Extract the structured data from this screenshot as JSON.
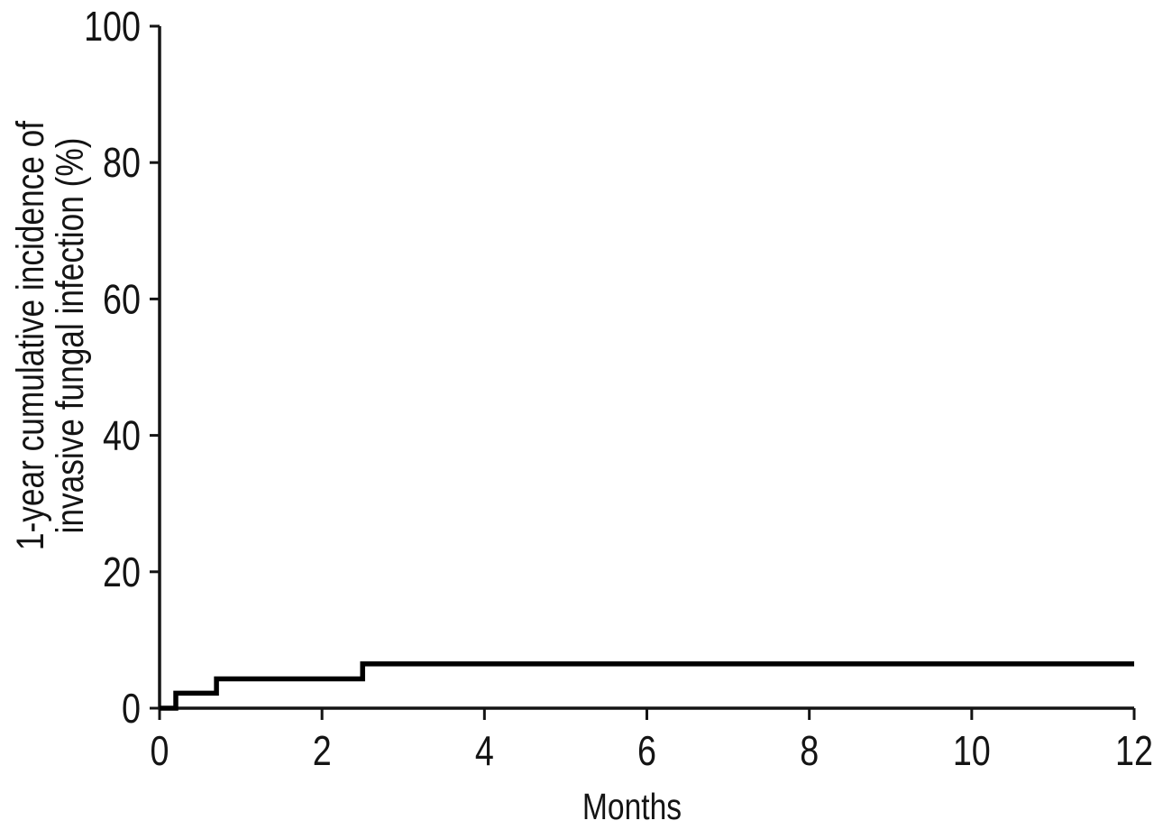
{
  "figure": {
    "background_color": "#ffffff",
    "axis_color": "#141414",
    "text_color": "#141414"
  },
  "chart_data": {
    "type": "line",
    "subtype": "step-post",
    "title": "",
    "xlabel": "Months",
    "ylabel_line1": "1-year cumulative incidence of",
    "ylabel_line2": "invasive fungal infection (%)",
    "xlim": [
      0,
      12
    ],
    "ylim": [
      0,
      100
    ],
    "xticks": [
      0,
      2,
      4,
      6,
      8,
      10,
      12
    ],
    "yticks": [
      0,
      20,
      40,
      60,
      80,
      100
    ],
    "grid": false,
    "legend": "none",
    "series": [
      {
        "name": "cumulative incidence of invasive fungal infection",
        "color": "#000000",
        "step_points": [
          [
            0,
            0
          ],
          [
            0.2,
            0
          ],
          [
            0.2,
            2.2
          ],
          [
            0.7,
            2.2
          ],
          [
            0.7,
            4.3
          ],
          [
            2.5,
            4.3
          ],
          [
            2.5,
            6.5
          ],
          [
            12,
            6.5
          ]
        ],
        "events": [
          {
            "month": 0.2,
            "incidence_pct": 2.2
          },
          {
            "month": 0.7,
            "incidence_pct": 4.3
          },
          {
            "month": 2.5,
            "incidence_pct": 6.5
          }
        ],
        "final_value_pct": 6.5
      }
    ]
  }
}
